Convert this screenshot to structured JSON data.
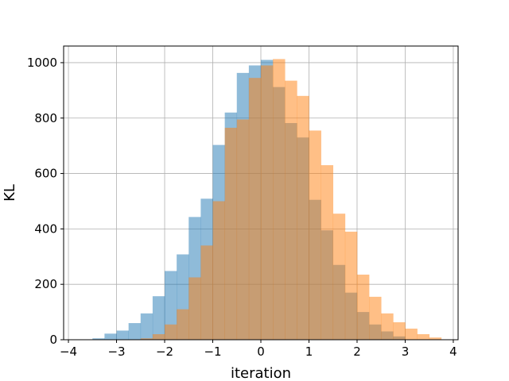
{
  "chart_data": {
    "type": "bar",
    "title": "",
    "xlabel": "iteration",
    "ylabel": "KL",
    "xlim": [
      -4.1,
      4.1
    ],
    "ylim": [
      0,
      1060
    ],
    "xticks": [
      -4,
      -3,
      -2,
      -1,
      0,
      1,
      2,
      3,
      4
    ],
    "yticks": [
      0,
      200,
      400,
      600,
      800,
      1000
    ],
    "grid": true,
    "series": [
      {
        "color": "#1f77b4",
        "opacity": 0.5,
        "bins": [
          {
            "x0": -3.5,
            "x1": -3.25,
            "y": 5
          },
          {
            "x0": -3.25,
            "x1": -3.0,
            "y": 22
          },
          {
            "x0": -3.0,
            "x1": -2.75,
            "y": 33
          },
          {
            "x0": -2.75,
            "x1": -2.5,
            "y": 60
          },
          {
            "x0": -2.5,
            "x1": -2.25,
            "y": 95
          },
          {
            "x0": -2.25,
            "x1": -2.0,
            "y": 157
          },
          {
            "x0": -2.0,
            "x1": -1.75,
            "y": 248
          },
          {
            "x0": -1.75,
            "x1": -1.5,
            "y": 308
          },
          {
            "x0": -1.5,
            "x1": -1.25,
            "y": 443
          },
          {
            "x0": -1.25,
            "x1": -1.0,
            "y": 509
          },
          {
            "x0": -1.0,
            "x1": -0.75,
            "y": 703
          },
          {
            "x0": -0.75,
            "x1": -0.5,
            "y": 820
          },
          {
            "x0": -0.5,
            "x1": -0.25,
            "y": 963
          },
          {
            "x0": -0.25,
            "x1": 0.0,
            "y": 990
          },
          {
            "x0": 0.0,
            "x1": 0.25,
            "y": 1010
          },
          {
            "x0": 0.25,
            "x1": 0.5,
            "y": 912
          },
          {
            "x0": 0.5,
            "x1": 0.75,
            "y": 782
          },
          {
            "x0": 0.75,
            "x1": 1.0,
            "y": 730
          },
          {
            "x0": 1.0,
            "x1": 1.25,
            "y": 505
          },
          {
            "x0": 1.25,
            "x1": 1.5,
            "y": 395
          },
          {
            "x0": 1.5,
            "x1": 1.75,
            "y": 270
          },
          {
            "x0": 1.75,
            "x1": 2.0,
            "y": 170
          },
          {
            "x0": 2.0,
            "x1": 2.25,
            "y": 100
          },
          {
            "x0": 2.25,
            "x1": 2.5,
            "y": 55
          },
          {
            "x0": 2.5,
            "x1": 2.75,
            "y": 30
          },
          {
            "x0": 2.75,
            "x1": 3.0,
            "y": 12
          }
        ]
      },
      {
        "color": "#ff7f0e",
        "opacity": 0.5,
        "bins": [
          {
            "x0": -2.5,
            "x1": -2.25,
            "y": 5
          },
          {
            "x0": -2.25,
            "x1": -2.0,
            "y": 20
          },
          {
            "x0": -2.0,
            "x1": -1.75,
            "y": 55
          },
          {
            "x0": -1.75,
            "x1": -1.5,
            "y": 110
          },
          {
            "x0": -1.5,
            "x1": -1.25,
            "y": 225
          },
          {
            "x0": -1.25,
            "x1": -1.0,
            "y": 340
          },
          {
            "x0": -1.0,
            "x1": -0.75,
            "y": 500
          },
          {
            "x0": -0.75,
            "x1": -0.5,
            "y": 765
          },
          {
            "x0": -0.5,
            "x1": -0.25,
            "y": 795
          },
          {
            "x0": -0.25,
            "x1": 0.0,
            "y": 945
          },
          {
            "x0": 0.0,
            "x1": 0.25,
            "y": 990
          },
          {
            "x0": 0.25,
            "x1": 0.5,
            "y": 1013
          },
          {
            "x0": 0.5,
            "x1": 0.75,
            "y": 935
          },
          {
            "x0": 0.75,
            "x1": 1.0,
            "y": 880
          },
          {
            "x0": 1.0,
            "x1": 1.25,
            "y": 755
          },
          {
            "x0": 1.25,
            "x1": 1.5,
            "y": 630
          },
          {
            "x0": 1.5,
            "x1": 1.75,
            "y": 455
          },
          {
            "x0": 1.75,
            "x1": 2.0,
            "y": 390
          },
          {
            "x0": 2.0,
            "x1": 2.25,
            "y": 235
          },
          {
            "x0": 2.25,
            "x1": 2.5,
            "y": 155
          },
          {
            "x0": 2.5,
            "x1": 2.75,
            "y": 95
          },
          {
            "x0": 2.75,
            "x1": 3.0,
            "y": 63
          },
          {
            "x0": 3.0,
            "x1": 3.25,
            "y": 40
          },
          {
            "x0": 3.25,
            "x1": 3.5,
            "y": 20
          },
          {
            "x0": 3.5,
            "x1": 3.75,
            "y": 8
          }
        ]
      }
    ]
  }
}
